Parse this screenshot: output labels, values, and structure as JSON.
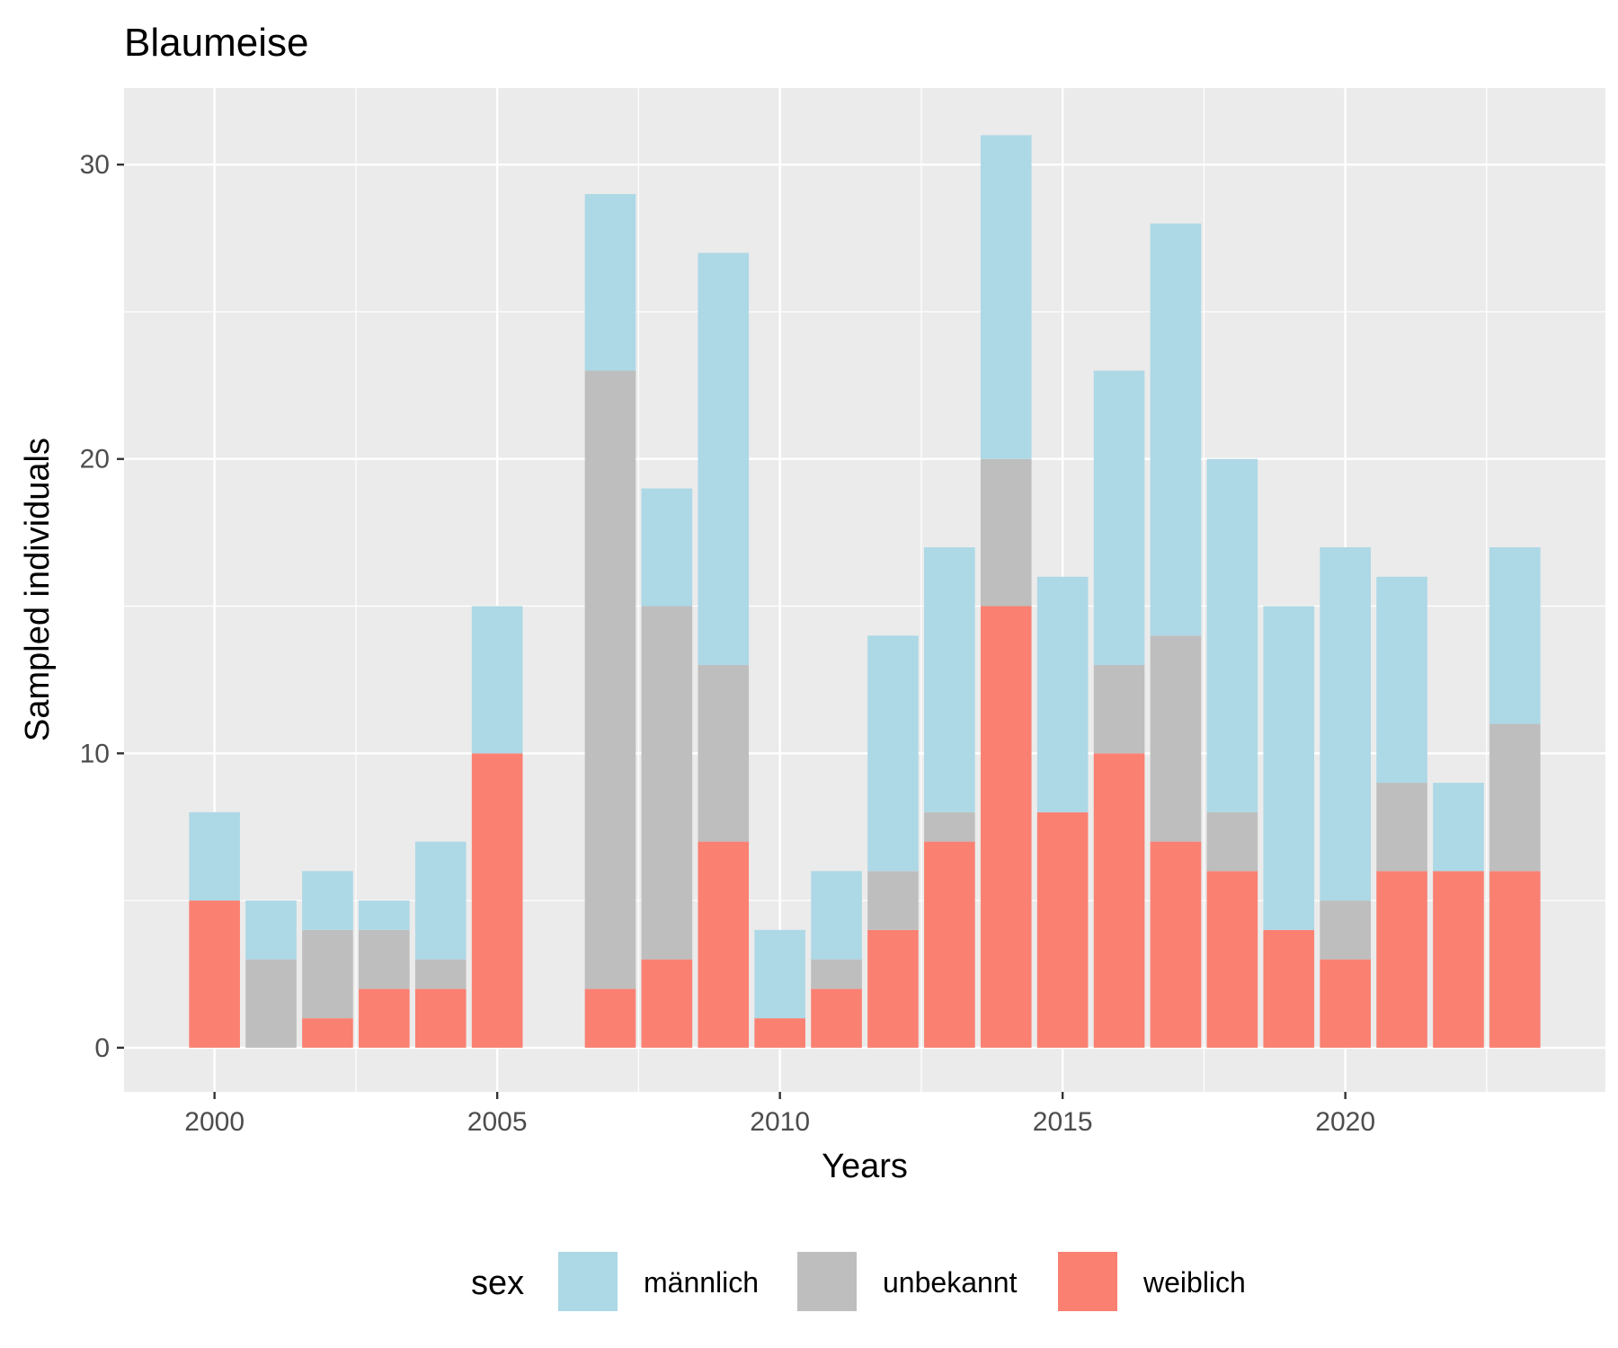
{
  "chart_data": {
    "type": "bar",
    "stacked": true,
    "title": "Blaumeise",
    "xlabel": "Years",
    "ylabel": "Sampled individuals",
    "x_ticks": [
      2000,
      2005,
      2010,
      2015,
      2020
    ],
    "y_ticks": [
      0,
      10,
      20,
      30
    ],
    "xlim": [
      1998.4,
      2024.6
    ],
    "ylim": [
      -1.5,
      32.6
    ],
    "grid": true,
    "legend": {
      "title": "sex",
      "position": "bottom"
    },
    "categories": [
      2000,
      2001,
      2002,
      2003,
      2004,
      2005,
      2007,
      2008,
      2009,
      2010,
      2011,
      2012,
      2013,
      2014,
      2015,
      2016,
      2017,
      2018,
      2019,
      2020,
      2021,
      2022,
      2023
    ],
    "series": [
      {
        "name": "männlich",
        "color": "#add8e6",
        "values": [
          3,
          2,
          2,
          1,
          4,
          5,
          6,
          4,
          14,
          3,
          3,
          8,
          9,
          11,
          8,
          10,
          14,
          12,
          11,
          12,
          7,
          3,
          6
        ]
      },
      {
        "name": "unbekannt",
        "color": "#bebebe",
        "values": [
          0,
          3,
          3,
          2,
          1,
          0,
          21,
          12,
          6,
          0,
          1,
          2,
          1,
          5,
          0,
          3,
          7,
          2,
          0,
          2,
          3,
          0,
          5
        ]
      },
      {
        "name": "weiblich",
        "color": "#fa8072",
        "values": [
          5,
          0,
          1,
          2,
          2,
          10,
          2,
          3,
          7,
          1,
          2,
          4,
          7,
          15,
          8,
          10,
          7,
          6,
          4,
          3,
          6,
          6,
          6
        ]
      }
    ]
  }
}
